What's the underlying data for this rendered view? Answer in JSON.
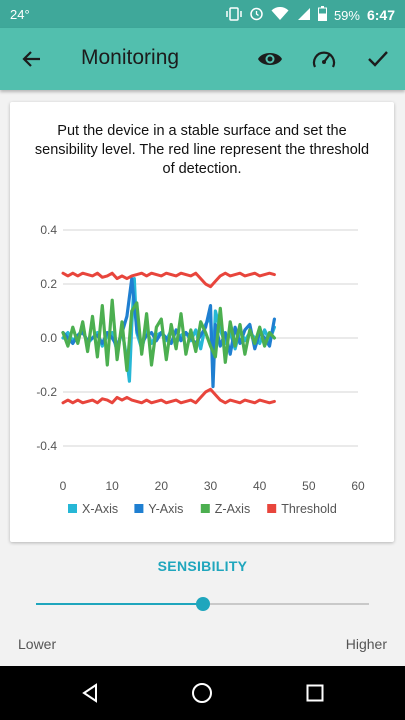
{
  "status_bar": {
    "temperature": "24°",
    "battery_percent": "59%",
    "time": "6:47"
  },
  "app_bar": {
    "title": "Monitoring"
  },
  "card": {
    "instructions": "Put the device in a stable surface and set the sensibility level. The red line represent the threshold of detection."
  },
  "chart_data": {
    "type": "line",
    "xlim": [
      0,
      60
    ],
    "ylim": [
      -0.4,
      0.4
    ],
    "x_ticks": [
      0,
      10,
      20,
      30,
      40,
      50,
      60
    ],
    "y_ticks": [
      0.4,
      0.2,
      0.0,
      -0.2,
      -0.4
    ],
    "y_tick_labels": [
      "0.4",
      "0.2",
      "0.0",
      "-0.2",
      "-0.4"
    ],
    "grid": "horizontal",
    "legend_position": "bottom",
    "series": [
      {
        "name": "X-Axis",
        "color": "#26b7d6",
        "x": [
          0,
          1,
          2,
          3,
          4,
          5,
          6,
          7,
          8,
          9,
          10,
          11,
          12,
          13,
          13.5,
          14,
          14.5,
          15,
          16,
          17,
          18,
          19,
          20,
          21,
          22,
          23,
          24,
          25,
          26,
          27,
          28,
          29,
          30,
          30.5,
          31,
          32,
          33,
          34,
          35,
          36,
          37,
          38,
          39,
          40,
          41,
          42,
          43
        ],
        "y": [
          0.0,
          0.02,
          -0.01,
          0.01,
          0.03,
          -0.02,
          0.0,
          0.02,
          -0.03,
          0.01,
          0.02,
          -0.05,
          0.03,
          -0.08,
          -0.16,
          0.05,
          0.22,
          0.02,
          -0.04,
          0.03,
          -0.02,
          0.01,
          0.02,
          -0.01,
          0.03,
          -0.02,
          0.01,
          0.02,
          -0.01,
          0.03,
          -0.04,
          0.05,
          0.08,
          -0.12,
          0.1,
          0.03,
          -0.02,
          0.02,
          -0.04,
          0.03,
          -0.01,
          0.02,
          0.0,
          -0.02,
          0.03,
          -0.01,
          0.04
        ]
      },
      {
        "name": "Y-Axis",
        "color": "#1f7fd1",
        "x": [
          0,
          1,
          2,
          3,
          4,
          5,
          6,
          7,
          8,
          9,
          10,
          11,
          12,
          13,
          14,
          15,
          16,
          17,
          18,
          19,
          20,
          21,
          22,
          23,
          24,
          25,
          26,
          27,
          28,
          29,
          30,
          30.5,
          31,
          32,
          33,
          34,
          35,
          36,
          37,
          38,
          39,
          40,
          41,
          42,
          43
        ],
        "y": [
          0.02,
          0.0,
          -0.02,
          0.01,
          0.02,
          -0.01,
          0.0,
          0.01,
          -0.02,
          0.02,
          0.0,
          -0.03,
          0.02,
          0.08,
          0.22,
          0.03,
          -0.02,
          0.01,
          0.02,
          -0.01,
          0.02,
          0.0,
          -0.02,
          0.03,
          -0.01,
          0.02,
          0.0,
          -0.02,
          0.01,
          0.04,
          0.12,
          -0.18,
          0.05,
          -0.03,
          0.02,
          -0.06,
          0.04,
          -0.02,
          0.03,
          0.05,
          -0.04,
          0.02,
          0.0,
          -0.03,
          0.07
        ]
      },
      {
        "name": "Z-Axis",
        "color": "#4caf50",
        "x": [
          0,
          1,
          2,
          3,
          4,
          5,
          6,
          7,
          8,
          9,
          10,
          11,
          12,
          13,
          14,
          15,
          16,
          17,
          18,
          19,
          20,
          21,
          22,
          23,
          24,
          25,
          26,
          27,
          28,
          29,
          30,
          31,
          32,
          33,
          34,
          35,
          36,
          37,
          38,
          39,
          40,
          41,
          42,
          43
        ],
        "y": [
          0.02,
          -0.03,
          0.04,
          -0.02,
          0.06,
          -0.05,
          0.08,
          -0.07,
          0.12,
          -0.1,
          0.14,
          -0.08,
          0.06,
          -0.12,
          0.1,
          0.13,
          -0.06,
          0.09,
          -0.1,
          0.04,
          0.07,
          -0.08,
          0.05,
          -0.04,
          0.09,
          -0.06,
          0.03,
          -0.05,
          0.06,
          0.02,
          -0.03,
          -0.07,
          0.11,
          -0.09,
          0.06,
          -0.03,
          0.05,
          -0.06,
          0.03,
          -0.02,
          0.04,
          -0.03,
          0.02,
          0.0
        ]
      },
      {
        "name": "Threshold",
        "color": "#e8453c",
        "x": [
          0,
          1,
          2,
          3,
          4,
          5,
          6,
          7,
          8,
          9,
          10,
          11,
          12,
          13,
          14,
          15,
          16,
          17,
          18,
          19,
          20,
          21,
          22,
          23,
          24,
          25,
          26,
          27,
          28,
          29,
          30,
          31,
          32,
          33,
          34,
          35,
          36,
          37,
          38,
          39,
          40,
          41,
          42,
          43
        ],
        "y": [
          0.24,
          0.23,
          0.24,
          0.23,
          0.24,
          0.235,
          0.23,
          0.24,
          0.225,
          0.23,
          0.24,
          0.22,
          0.23,
          0.22,
          0.23,
          0.235,
          0.24,
          0.23,
          0.24,
          0.235,
          0.23,
          0.24,
          0.235,
          0.23,
          0.24,
          0.235,
          0.23,
          0.24,
          0.22,
          0.2,
          0.19,
          0.21,
          0.23,
          0.24,
          0.23,
          0.235,
          0.24,
          0.23,
          0.235,
          0.24,
          0.23,
          0.235,
          0.24,
          0.235
        ],
        "mirror": true
      }
    ]
  },
  "sensibility": {
    "label": "SENSIBILITY",
    "value_fraction": 0.5,
    "lower_label": "Lower",
    "higher_label": "Higher"
  }
}
